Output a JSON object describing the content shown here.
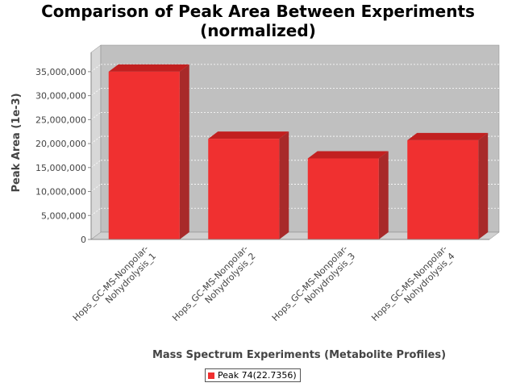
{
  "title_line1": "Comparison of Peak Area Between Experiments",
  "title_line2": "(normalized)",
  "colors": {
    "bar_front": "#f03030",
    "bar_top": "#c22020",
    "bar_side": "#a82a2a",
    "plot_bg": "#c0c0c0",
    "plot_wall": "#d8d8d8",
    "plot_floor": "#d0d0d0"
  },
  "chart_data": {
    "type": "bar",
    "title": "Comparison of Peak Area Between Experiments (normalized)",
    "xlabel": "Mass Spectrum Experiments (Metabolite Profiles)",
    "ylabel": "Peak Area (1e-3)",
    "ylim": [
      0,
      37000000
    ],
    "yticks": [
      0,
      5000000,
      10000000,
      15000000,
      20000000,
      25000000,
      30000000,
      35000000
    ],
    "ytick_labels": [
      "0",
      "5,000,000",
      "10,000,000",
      "15,000,000",
      "20,000,000",
      "25,000,000",
      "30,000,000",
      "35,000,000"
    ],
    "grid": true,
    "legend_position": "bottom-center",
    "categories": [
      [
        "Hops_GC-MS-Nonpolar-",
        "Nohydrolysis_1"
      ],
      [
        "Hops_GC-MS-Nonpolar-",
        "Nohydrolysis_2"
      ],
      [
        "Hops_GC-MS-Nonpolar-",
        "Nohydrolysis_3"
      ],
      [
        "Hops_GC-MS-Nonpolar-",
        "Nohydrolysis_4"
      ]
    ],
    "series": [
      {
        "name": "Peak 74(22.7356)",
        "values": [
          35000000,
          21000000,
          16900000,
          20700000
        ]
      }
    ]
  }
}
